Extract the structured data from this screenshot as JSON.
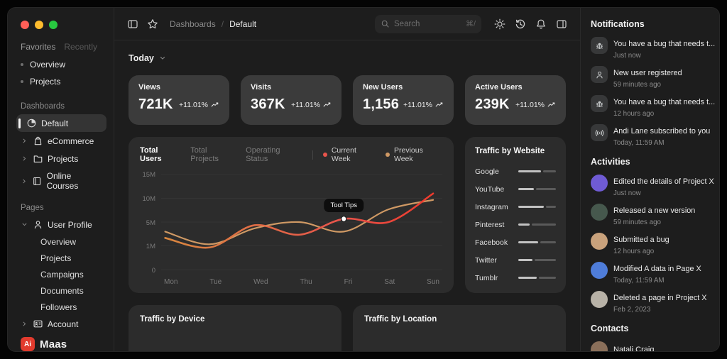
{
  "window": {
    "controls": {
      "close": "#ff5f57",
      "minimize": "#febc2e",
      "zoom": "#28c840"
    }
  },
  "sidebar": {
    "tabs": {
      "favorites": "Favorites",
      "recently": "Recently"
    },
    "favorites_items": [
      {
        "label": "Overview"
      },
      {
        "label": "Projects"
      }
    ],
    "dashboards": {
      "title": "Dashboards",
      "items": [
        {
          "label": "Default",
          "icon": "pie-chart-icon",
          "active": true
        },
        {
          "label": "eCommerce",
          "icon": "shopping-bag-icon",
          "active": false
        },
        {
          "label": "Projects",
          "icon": "folder-icon",
          "active": false
        },
        {
          "label": "Online Courses",
          "icon": "book-icon",
          "active": false
        }
      ]
    },
    "pages": {
      "title": "Pages",
      "user_profile": {
        "label": "User Profile",
        "icon": "user-icon",
        "children": [
          {
            "label": "Overview"
          },
          {
            "label": "Projects"
          },
          {
            "label": "Campaigns"
          },
          {
            "label": "Documents"
          },
          {
            "label": "Followers"
          }
        ]
      },
      "account": {
        "label": "Account",
        "icon": "id-badge-icon"
      }
    },
    "logo": {
      "mark": "Ai",
      "name": "Maas",
      "mark_color": "#e23b2e"
    }
  },
  "header": {
    "breadcrumb": {
      "section": "Dashboards",
      "separator": "/",
      "page": "Default"
    },
    "search": {
      "placeholder": "Search",
      "shortcut": "⌘/"
    }
  },
  "main": {
    "period": {
      "label": "Today"
    },
    "metrics": [
      {
        "label": "Views",
        "value": "721K",
        "delta": "+11.01%"
      },
      {
        "label": "Visits",
        "value": "367K",
        "delta": "+11.01%"
      },
      {
        "label": "New Users",
        "value": "1,156",
        "delta": "+11.01%"
      },
      {
        "label": "Active Users",
        "value": "239K",
        "delta": "+11.01%"
      }
    ],
    "chart_card": {
      "tabs": [
        {
          "label": "Total Users",
          "active": true
        },
        {
          "label": "Total Projects",
          "active": false
        },
        {
          "label": "Operating Status",
          "active": false
        }
      ],
      "legend": [
        {
          "label": "Current Week",
          "color": "#e8544b"
        },
        {
          "label": "Previous Week",
          "color": "#cf9964"
        }
      ],
      "tooltip": "Tool Tips"
    },
    "chart_data": {
      "type": "line",
      "x": [
        "Mon",
        "Tue",
        "Wed",
        "Thu",
        "Fri",
        "Sat",
        "Sun"
      ],
      "y_ticks": [
        "15M",
        "10M",
        "5M",
        "1M",
        "0"
      ],
      "ylim": [
        0,
        15
      ],
      "series": [
        {
          "name": "Current Week",
          "color": "#e8544b",
          "values": [
            5,
            3.5,
            7,
            5.5,
            8,
            7.5,
            12
          ]
        },
        {
          "name": "Previous Week",
          "color": "#cf9964",
          "values": [
            6,
            4,
            6.5,
            7.5,
            6,
            9.5,
            11
          ]
        }
      ],
      "tooltip_point": {
        "series": 0,
        "index": 4
      }
    },
    "traffic_website": {
      "title": "Traffic by Website",
      "sites": [
        {
          "name": "Google",
          "bar": [
            32,
            18
          ]
        },
        {
          "name": "YouTube",
          "bar": [
            22,
            28
          ]
        },
        {
          "name": "Instagram",
          "bar": [
            36,
            14
          ]
        },
        {
          "name": "Pinterest",
          "bar": [
            16,
            34
          ]
        },
        {
          "name": "Facebook",
          "bar": [
            28,
            22
          ]
        },
        {
          "name": "Twitter",
          "bar": [
            20,
            30
          ]
        },
        {
          "name": "Tumblr",
          "bar": [
            26,
            24
          ]
        }
      ]
    },
    "bottom_cards": [
      {
        "title": "Traffic by Device"
      },
      {
        "title": "Traffic by Location"
      }
    ]
  },
  "right_panel": {
    "notifications": {
      "title": "Notifications",
      "items": [
        {
          "icon": "bug-icon",
          "text": "You have a bug that needs t...",
          "time": "Just now"
        },
        {
          "icon": "user-icon",
          "text": "New user registered",
          "time": "59 minutes ago"
        },
        {
          "icon": "bug-icon",
          "text": "You have a bug that needs t...",
          "time": "12 hours ago"
        },
        {
          "icon": "broadcast-icon",
          "text": "Andi Lane subscribed to you",
          "time": "Today, 11:59 AM"
        }
      ]
    },
    "activities": {
      "title": "Activities",
      "items": [
        {
          "text": "Edited the details of Project X",
          "time": "Just now",
          "avatar_color": "#6f5bd4"
        },
        {
          "text": "Released a new version",
          "time": "59 minutes ago",
          "avatar_color": "#46584d"
        },
        {
          "text": "Submitted a bug",
          "time": "12 hours ago",
          "avatar_color": "#c9a27c"
        },
        {
          "text": "Modified A data in Page X",
          "time": "Today, 11:59 AM",
          "avatar_color": "#4f7dd9"
        },
        {
          "text": "Deleted a page in Project X",
          "time": "Feb 2, 2023",
          "avatar_color": "#b8b2a7"
        }
      ]
    },
    "contacts": {
      "title": "Contacts",
      "items": [
        {
          "name": "Natali Craig",
          "avatar_color": "#8a6f5a"
        }
      ]
    }
  }
}
